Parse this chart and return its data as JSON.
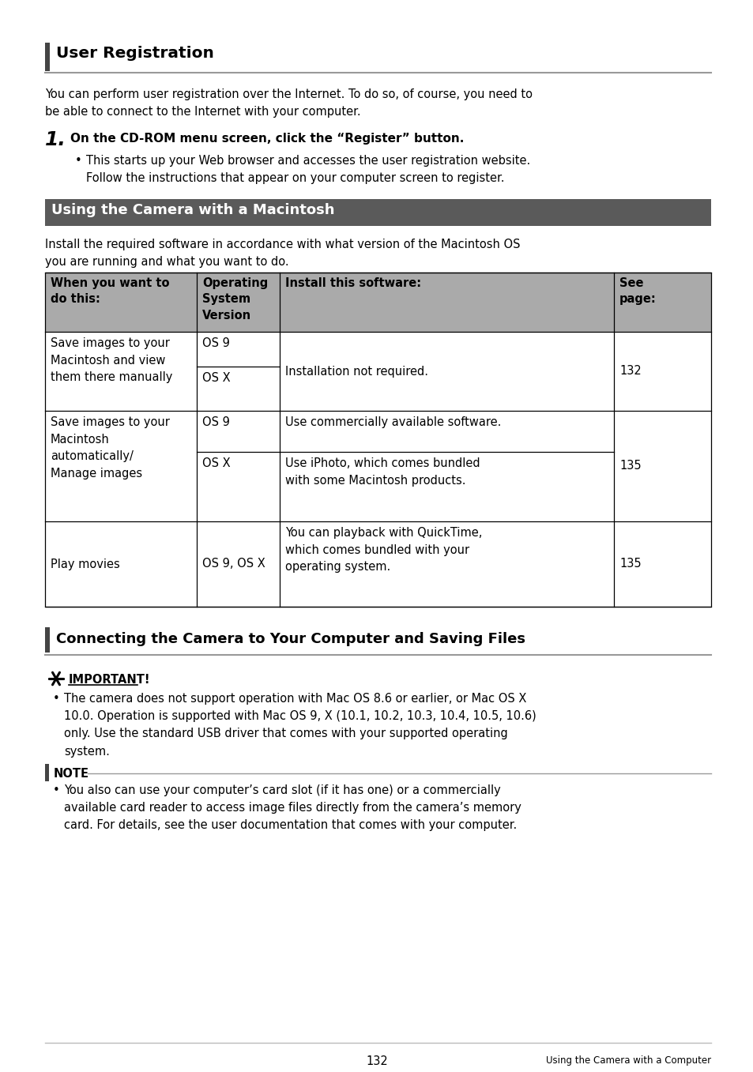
{
  "page_bg": "#ffffff",
  "section1_title": "User Registration",
  "section1_body1": "You can perform user registration over the Internet. To do so, of course, you need to\nbe able to connect to the Internet with your computer.",
  "step1_num": "1.",
  "step1_text": "On the CD-ROM menu screen, click the “Register” button.",
  "step1_bullet": "This starts up your Web browser and accesses the user registration website.\nFollow the instructions that appear on your computer screen to register.",
  "section2_title": "Using the Camera with a Macintosh",
  "section2_body": "Install the required software in accordance with what version of the Macintosh OS\nyou are running and what you want to do.",
  "table_header_bg": "#aaaaaa",
  "table_col1_header": "When you want to\ndo this:",
  "table_col2_header": "Operating\nSystem\nVersion",
  "table_col3_header": "Install this software:",
  "table_col4_header": "See\npage:",
  "section3_title": "Connecting the Camera to Your Computer and Saving Files",
  "important_label": "IMPORTANT!",
  "important_text": "The camera does not support operation with Mac OS 8.6 or earlier, or Mac OS X\n10.0. Operation is supported with Mac OS 9, X (10.1, 10.2, 10.3, 10.4, 10.5, 10.6)\nonly. Use the standard USB driver that comes with your supported operating\nsystem.",
  "note_label": "NOTE",
  "note_text": "You also can use your computer’s card slot (if it has one) or a commercially\navailable card reader to access image files directly from the camera’s memory\ncard. For details, see the user documentation that comes with your computer.",
  "footer_page": "132",
  "footer_right": "Using the Camera with a Computer",
  "dark_header_bg": "#5a5a5a",
  "dark_header_fg": "#ffffff",
  "accent_bar_color": "#444444",
  "rule_color": "#999999",
  "table_border_color": "#000000"
}
